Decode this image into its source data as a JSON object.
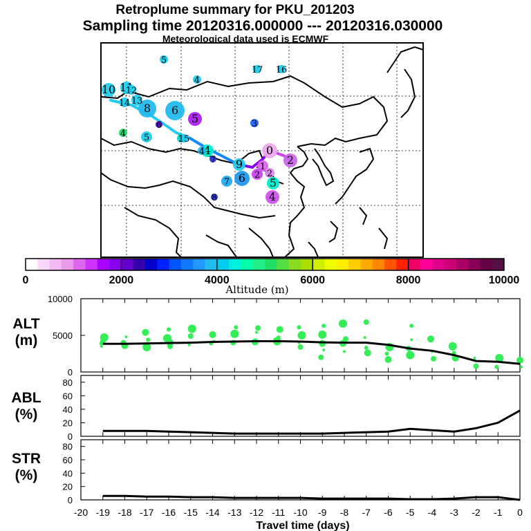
{
  "header": {
    "title": "Retroplume summary for PKU_201203",
    "sampling": "Sampling time   20120316.000000 --- 20120316.030000",
    "met": "Meteorological data used is ECMWF"
  },
  "colorbar": {
    "label": "Altitude (m)",
    "ticks": [
      "0",
      "2000",
      "4000",
      "6000",
      "8000",
      "10000"
    ],
    "colors": [
      "#ffffff",
      "#f9d9f9",
      "#f2b9f2",
      "#e99ae9",
      "#dd66ee",
      "#cc33ff",
      "#aa00ff",
      "#8800ee",
      "#6600cc",
      "#3300aa",
      "#0000cc",
      "#0022ff",
      "#0055ff",
      "#1177ff",
      "#2299ff",
      "#22bbee",
      "#00ccee",
      "#00eedd",
      "#00ffaa",
      "#22ee88",
      "#22dd66",
      "#55dd44",
      "#88dd22",
      "#aadd00",
      "#ccee00",
      "#eeff00",
      "#ffee00",
      "#ffcc00",
      "#ffaa00",
      "#ff8800",
      "#ff5500",
      "#ff2200",
      "#ee0066",
      "#ff0099",
      "#dd0088",
      "#cc0077",
      "#aa0066",
      "#880055",
      "#660044",
      "#551144"
    ]
  },
  "map": {
    "points": [
      {
        "label": "0",
        "color": "#eeaaee"
      },
      {
        "label": "1",
        "color": "#dd66ee"
      },
      {
        "label": "2",
        "color": "#cc44ee"
      },
      {
        "label": "2",
        "color": "#dd88ee"
      },
      {
        "label": "2",
        "color": "#cc66ee"
      },
      {
        "label": "3",
        "color": "#2266ff"
      },
      {
        "label": "4",
        "color": "#cc55ee"
      },
      {
        "label": "4",
        "color": "#00eecc"
      },
      {
        "label": "4",
        "color": "#22dd66"
      },
      {
        "label": "4",
        "color": "#22bbee"
      },
      {
        "label": "4",
        "color": "#22ccee"
      },
      {
        "label": "5",
        "color": "#22ccee"
      },
      {
        "label": "5",
        "color": "#00ddcc"
      },
      {
        "label": "5",
        "color": "#22ccee"
      },
      {
        "label": "5",
        "color": "#00eecc"
      },
      {
        "label": "5",
        "color": "#aa22ee"
      },
      {
        "label": "6",
        "color": "#2299ee"
      },
      {
        "label": "6",
        "color": "#5500cc"
      },
      {
        "label": "6",
        "color": "#22bbee"
      },
      {
        "label": "7",
        "color": "#22aaee"
      },
      {
        "label": "7",
        "color": "#2233cc"
      },
      {
        "label": "8",
        "color": "#22bbee"
      },
      {
        "label": "8",
        "color": "#2233dd"
      },
      {
        "label": "9",
        "color": "#22ccee"
      },
      {
        "label": "10",
        "color": "#22ccee"
      },
      {
        "label": "11",
        "color": "#22ccee"
      },
      {
        "label": "12",
        "color": "#22ccee"
      },
      {
        "label": "13",
        "color": "#22ccee"
      },
      {
        "label": "14",
        "color": "#22ccee"
      },
      {
        "label": "15",
        "color": "#22ccee"
      },
      {
        "label": "16",
        "color": "#22ccee"
      },
      {
        "label": "17",
        "color": "#22ccee"
      }
    ]
  },
  "chart_data": [
    {
      "type": "scatter",
      "name": "ALT",
      "ylabel_line1": "ALT",
      "ylabel_line2": "(m)",
      "ylim": [
        0,
        10000
      ],
      "yticks": [
        "10000",
        "5000",
        "0"
      ],
      "median_line": {
        "x": [
          -19,
          -18,
          -17,
          -16,
          -15,
          -14,
          -13,
          -12,
          -11,
          -10,
          -9,
          -8,
          -7,
          -6,
          -5,
          -4,
          -3,
          -2,
          -1,
          0
        ],
        "y": [
          3850,
          3850,
          3900,
          3950,
          4000,
          4100,
          4150,
          4200,
          4200,
          4150,
          4050,
          4000,
          4000,
          3700,
          3200,
          2900,
          2300,
          1500,
          1400,
          1100
        ]
      },
      "points": {
        "x": [
          -19,
          -19,
          -19,
          -19,
          -18,
          -18,
          -18,
          -17,
          -17,
          -17,
          -17,
          -16,
          -16,
          -16,
          -16,
          -15,
          -15,
          -15,
          -14,
          -14,
          -14,
          -13,
          -13,
          -13,
          -12,
          -12,
          -12,
          -11,
          -11,
          -11,
          -10,
          -10,
          -10,
          -10,
          -9,
          -9,
          -9,
          -9,
          -9,
          -8,
          -8,
          -8,
          -8,
          -7,
          -7,
          -7,
          -7,
          -6,
          -6,
          -6,
          -5,
          -5,
          -5,
          -5,
          -4,
          -4,
          -4,
          -3,
          -3,
          -3,
          -2,
          -2,
          -1,
          -1,
          0,
          0
        ],
        "y": [
          3500,
          4200,
          4700,
          3900,
          3600,
          4800,
          4000,
          3400,
          4400,
          5400,
          3900,
          3500,
          4600,
          5800,
          4000,
          3700,
          4900,
          5900,
          3900,
          5100,
          4200,
          4000,
          5200,
          6100,
          4100,
          5400,
          6000,
          4200,
          4700,
          5800,
          4000,
          3400,
          5000,
          6100,
          3900,
          3000,
          2000,
          5100,
          6300,
          3900,
          2800,
          4500,
          6600,
          3300,
          2600,
          4700,
          6800,
          3400,
          2500,
          1700,
          4400,
          3200,
          2300,
          6300,
          4500,
          2800,
          1800,
          3500,
          2600,
          1900,
          1900,
          800,
          1900,
          700,
          1600,
          700
        ]
      },
      "point_color": "#33ee55",
      "line_color": "#000000"
    },
    {
      "type": "line",
      "name": "ABL",
      "ylabel_line1": "ABL",
      "ylabel_line2": "(%)",
      "ylim": [
        0,
        90
      ],
      "yticks": [
        "80",
        "60",
        "40",
        "20",
        "0"
      ],
      "x": [
        -19,
        -18,
        -17,
        -16,
        -15,
        -14,
        -13,
        -12,
        -11,
        -10,
        -9,
        -8,
        -7,
        -6,
        -5,
        -4,
        -3,
        -2,
        -1,
        0
      ],
      "y": [
        8,
        8,
        8,
        7,
        6,
        5,
        4,
        4,
        4,
        4,
        4,
        5,
        6,
        7,
        11,
        9,
        7,
        12,
        20,
        38
      ]
    },
    {
      "type": "line",
      "name": "STR",
      "ylabel_line1": "STR",
      "ylabel_line2": "(%)",
      "ylim": [
        0,
        90
      ],
      "yticks": [
        "80",
        "60",
        "40",
        "20",
        "0"
      ],
      "x": [
        -19,
        -18,
        -17,
        -16,
        -15,
        -14,
        -13,
        -12,
        -11,
        -10,
        -9,
        -8,
        -7,
        -6,
        -5,
        -4,
        -3,
        -2,
        -1,
        0
      ],
      "y": [
        6,
        6,
        5,
        5,
        4,
        4,
        3,
        3,
        3,
        3,
        2,
        2,
        2,
        2,
        1,
        1,
        2,
        4,
        4,
        0
      ]
    }
  ],
  "xaxis": {
    "ticks": [
      "-20",
      "-19",
      "-18",
      "-17",
      "-16",
      "-15",
      "-14",
      "-13",
      "-12",
      "-11",
      "-10",
      "-9",
      "-8",
      "-7",
      "-6",
      "-5",
      "-4",
      "-3",
      "-2",
      "-1",
      "0"
    ],
    "xlim": [
      -20,
      0
    ],
    "label": "Travel time (days)"
  }
}
